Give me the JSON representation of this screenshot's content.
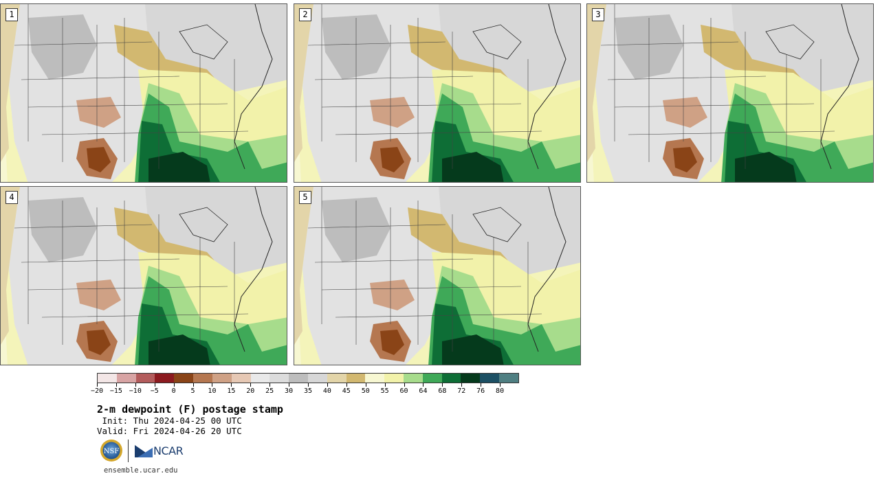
{
  "panels": [
    {
      "label": "1"
    },
    {
      "label": "2"
    },
    {
      "label": "3"
    },
    {
      "label": "4"
    },
    {
      "label": "5"
    }
  ],
  "colorbar": {
    "colors": [
      "#f3e6e6",
      "#d8a4a4",
      "#b35c5c",
      "#8c1a1f",
      "#8a4417",
      "#b57750",
      "#cfa185",
      "#e6c8b4",
      "#e9e9e9",
      "#dcdcdc",
      "#bdbdbd",
      "#d7d7d7",
      "#e3d5a9",
      "#d2b870",
      "#f7f7d2",
      "#f2f2aa",
      "#a7dc8c",
      "#3fa958",
      "#0e6e36",
      "#053a1c",
      "#1c5064",
      "#4f7f82"
    ],
    "tick_labels": [
      "−20",
      "−15",
      "−10",
      "−5",
      "0",
      "5",
      "10",
      "15",
      "20",
      "25",
      "30",
      "35",
      "40",
      "45",
      "50",
      "55",
      "60",
      "64",
      "68",
      "72",
      "76",
      "80"
    ]
  },
  "title": "2-m dewpoint (F) postage stamp",
  "init": " Init: Thu 2024-04-25 00 UTC",
  "valid": "Valid: Fri 2024-04-26 20 UTC",
  "logos": {
    "nsf_text": "NSF",
    "ncar_text": "NCAR"
  },
  "footer": "ensemble.ucar.edu"
}
